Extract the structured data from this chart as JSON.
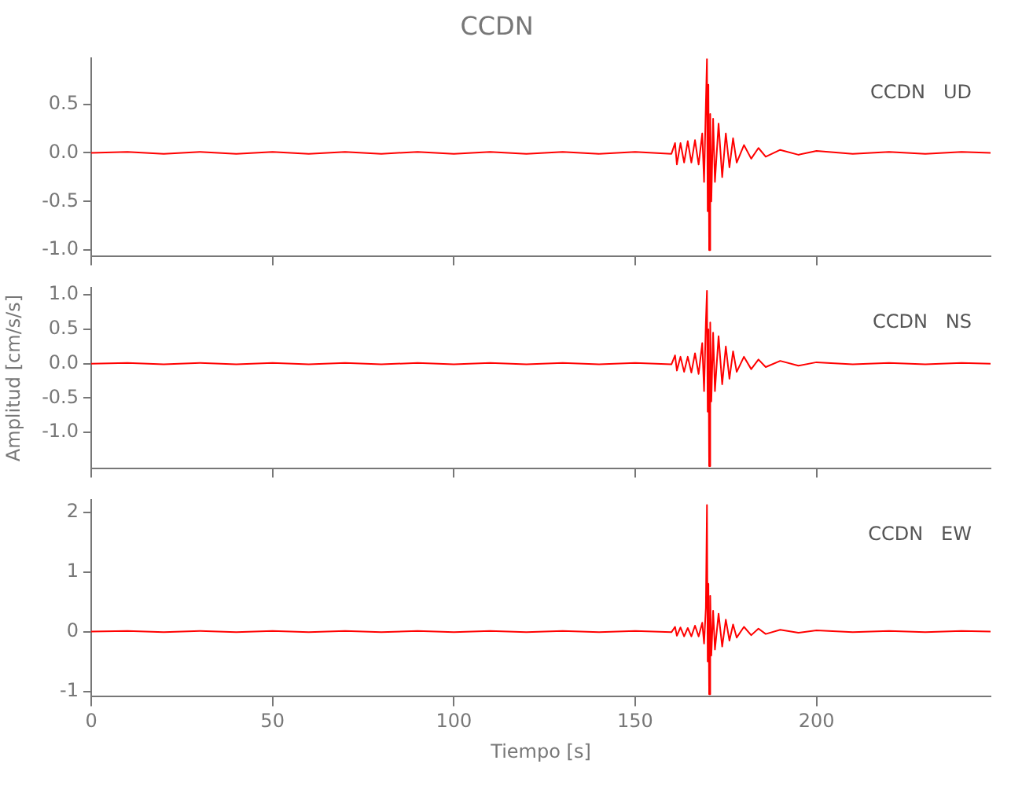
{
  "chart_data": [
    {
      "type": "line",
      "title": "CCDN",
      "annotations": [
        "CCDN   UD"
      ],
      "tick_labels": "y",
      "marker": "none",
      "grid": false,
      "xlim": [
        0,
        248
      ],
      "xticks": [
        0,
        50,
        100,
        150,
        200
      ],
      "ylim": [
        -1.06,
        0.97
      ],
      "yticks": [
        {
          "value": -1,
          "label": "-1.0"
        },
        {
          "value": -0.5,
          "label": "-0.5"
        },
        {
          "value": 0,
          "label": "0.0"
        },
        {
          "value": 0.5,
          "label": "0.5"
        }
      ],
      "series": [
        {
          "color": "#ff0000",
          "x": [
            0,
            10,
            20,
            30,
            40,
            50,
            60,
            70,
            80,
            90,
            100,
            110,
            120,
            130,
            140,
            150,
            160,
            161,
            161.5,
            162.5,
            163.5,
            164.5,
            165.5,
            166.5,
            167.5,
            168.5,
            169,
            169.5,
            169.8,
            170,
            170.2,
            170.4,
            170.7,
            171,
            171.5,
            172,
            173,
            174,
            175,
            176,
            177,
            178,
            180,
            182,
            184,
            186,
            190,
            195,
            200,
            210,
            220,
            230,
            240,
            248
          ],
          "values": [
            0,
            0.01,
            -0.01,
            0.01,
            -0.01,
            0.01,
            -0.01,
            0.01,
            -0.01,
            0.01,
            -0.01,
            0.01,
            -0.01,
            0.01,
            -0.01,
            0.01,
            -0.01,
            0.1,
            -0.12,
            0.1,
            -0.1,
            0.12,
            -0.1,
            0.13,
            -0.12,
            0.2,
            -0.3,
            0.5,
            0.97,
            -0.6,
            0.7,
            -1.0,
            0.4,
            -0.5,
            0.35,
            -0.3,
            0.3,
            -0.25,
            0.2,
            -0.15,
            0.15,
            -0.1,
            0.08,
            -0.06,
            0.05,
            -0.04,
            0.03,
            -0.02,
            0.02,
            -0.01,
            0.01,
            -0.01,
            0.01,
            0
          ]
        }
      ]
    },
    {
      "type": "line",
      "ylabel": "Amplitud [cm/s/s]",
      "annotations": [
        "CCDN   NS"
      ],
      "tick_labels": "y",
      "marker": "none",
      "grid": false,
      "xlim": [
        0,
        248
      ],
      "xticks": [
        0,
        50,
        100,
        150,
        200
      ],
      "ylim": [
        -1.52,
        1.1
      ],
      "yticks": [
        {
          "value": -1,
          "label": "-1.0"
        },
        {
          "value": -0.5,
          "label": "-0.5"
        },
        {
          "value": 0,
          "label": "0.0"
        },
        {
          "value": 0.5,
          "label": "0.5"
        },
        {
          "value": 1,
          "label": "1.0"
        }
      ],
      "series": [
        {
          "color": "#ff0000",
          "x": [
            0,
            10,
            20,
            30,
            40,
            50,
            60,
            70,
            80,
            90,
            100,
            110,
            120,
            130,
            140,
            150,
            160,
            161,
            161.5,
            162.5,
            163.5,
            164.5,
            165.5,
            166.5,
            167.5,
            168.5,
            169,
            169.5,
            169.8,
            170,
            170.2,
            170.4,
            170.7,
            171,
            171.5,
            172,
            173,
            174,
            175,
            176,
            177,
            178,
            180,
            182,
            184,
            186,
            190,
            195,
            200,
            210,
            220,
            230,
            240,
            248
          ],
          "values": [
            0,
            0.01,
            -0.01,
            0.01,
            -0.01,
            0.01,
            -0.01,
            0.01,
            -0.01,
            0.01,
            -0.01,
            0.01,
            -0.01,
            0.01,
            -0.01,
            0.01,
            -0.01,
            0.12,
            -0.1,
            0.1,
            -0.12,
            0.1,
            -0.13,
            0.15,
            -0.15,
            0.3,
            -0.4,
            0.6,
            1.06,
            -0.7,
            0.5,
            -1.49,
            0.6,
            -0.55,
            0.45,
            -0.4,
            0.4,
            -0.3,
            0.25,
            -0.22,
            0.18,
            -0.12,
            0.1,
            -0.08,
            0.06,
            -0.05,
            0.04,
            -0.03,
            0.02,
            -0.01,
            0.01,
            -0.01,
            0.01,
            0
          ]
        }
      ]
    },
    {
      "type": "line",
      "xlabel": "Tiempo [s]",
      "annotations": [
        "CCDN   EW"
      ],
      "marker": "none",
      "grid": false,
      "xlim": [
        0,
        248
      ],
      "xticks": [
        0,
        50,
        100,
        150,
        200
      ],
      "ylim": [
        -1.09,
        2.2
      ],
      "yticks": [
        -1,
        0,
        1,
        2
      ],
      "series": [
        {
          "color": "#ff0000",
          "x": [
            0,
            10,
            20,
            30,
            40,
            50,
            60,
            70,
            80,
            90,
            100,
            110,
            120,
            130,
            140,
            150,
            160,
            161,
            161.5,
            162.5,
            163.5,
            164.5,
            165.5,
            166.5,
            167.5,
            168.5,
            169,
            169.5,
            169.8,
            170,
            170.2,
            170.4,
            170.7,
            171,
            171.5,
            172,
            173,
            174,
            175,
            176,
            177,
            178,
            180,
            182,
            184,
            186,
            190,
            195,
            200,
            210,
            220,
            230,
            240,
            248
          ],
          "values": [
            0,
            0.01,
            -0.01,
            0.01,
            -0.01,
            0.01,
            -0.01,
            0.01,
            -0.01,
            0.01,
            -0.01,
            0.01,
            -0.01,
            0.01,
            -0.01,
            0.01,
            -0.01,
            0.08,
            -0.07,
            0.07,
            -0.08,
            0.06,
            -0.08,
            0.1,
            -0.08,
            0.15,
            -0.2,
            0.4,
            2.12,
            -0.5,
            0.8,
            -1.05,
            0.6,
            -0.4,
            0.35,
            -0.3,
            0.3,
            -0.25,
            0.2,
            -0.15,
            0.12,
            -0.1,
            0.08,
            -0.06,
            0.05,
            -0.04,
            0.03,
            -0.02,
            0.02,
            -0.01,
            0.01,
            -0.01,
            0.01,
            0
          ]
        }
      ]
    }
  ]
}
